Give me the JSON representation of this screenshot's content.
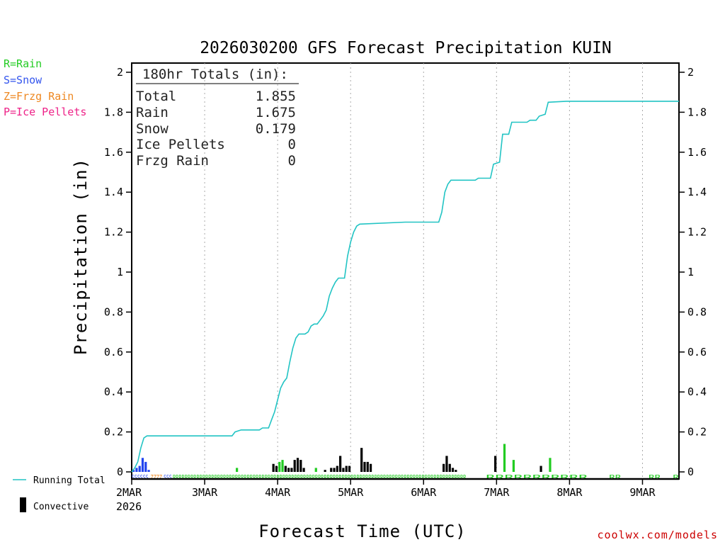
{
  "chart_data": {
    "type": "bar",
    "title": "2026030200 GFS Forecast Precipitation KUIN",
    "xlabel": "Forecast Time (UTC)",
    "ylabel": "Precipitation (in)",
    "ylim": [
      0,
      2
    ],
    "yticks": [
      "0",
      "0.2",
      "0.4",
      "0.6",
      "0.8",
      "1",
      "1.2",
      "1.4",
      "1.6",
      "1.8",
      "2"
    ],
    "xlim_hours": [
      0,
      180
    ],
    "day_ticks": [
      {
        "label": "2MAR",
        "hour": 0
      },
      {
        "label": "3MAR",
        "hour": 24
      },
      {
        "label": "4MAR",
        "hour": 48
      },
      {
        "label": "5MAR",
        "hour": 72
      },
      {
        "label": "6MAR",
        "hour": 96
      },
      {
        "label": "7MAR",
        "hour": 120
      },
      {
        "label": "8MAR",
        "hour": 144
      },
      {
        "label": "9MAR",
        "hour": 168
      }
    ],
    "year_label": "2026",
    "legend": [
      {
        "label": "R=Rain",
        "color": "#22cc22"
      },
      {
        "label": "S=Snow",
        "color": "#3355ee"
      },
      {
        "label": "Z=Frzg Rain",
        "color": "#ee8822"
      },
      {
        "label": "P=Ice Pellets",
        "color": "#ee2288"
      }
    ],
    "bottom_legend": {
      "running_total": "Running Total",
      "convective": "Convective"
    },
    "running_total_color": "#22c4c4",
    "totals": {
      "heading": "180hr Totals (in):",
      "rows": [
        {
          "label": "Total",
          "value": "1.855"
        },
        {
          "label": "Rain",
          "value": "1.675"
        },
        {
          "label": "Snow",
          "value": "0.179"
        },
        {
          "label": "Ice Pellets",
          "value": "0"
        },
        {
          "label": "Frzg Rain",
          "value": "0"
        }
      ]
    },
    "running_total": [
      [
        0,
        0
      ],
      [
        1,
        0.02
      ],
      [
        2,
        0.05
      ],
      [
        3,
        0.12
      ],
      [
        4,
        0.17
      ],
      [
        5,
        0.18
      ],
      [
        24,
        0.18
      ],
      [
        33,
        0.18
      ],
      [
        34,
        0.2
      ],
      [
        36,
        0.21
      ],
      [
        42,
        0.21
      ],
      [
        43,
        0.22
      ],
      [
        45,
        0.22
      ],
      [
        46,
        0.26
      ],
      [
        47,
        0.3
      ],
      [
        48,
        0.36
      ],
      [
        49,
        0.42
      ],
      [
        50,
        0.45
      ],
      [
        51,
        0.47
      ],
      [
        52,
        0.55
      ],
      [
        53,
        0.62
      ],
      [
        54,
        0.67
      ],
      [
        55,
        0.69
      ],
      [
        57,
        0.69
      ],
      [
        58,
        0.7
      ],
      [
        59,
        0.73
      ],
      [
        60,
        0.74
      ],
      [
        61,
        0.74
      ],
      [
        62,
        0.76
      ],
      [
        63,
        0.78
      ],
      [
        64,
        0.81
      ],
      [
        65,
        0.88
      ],
      [
        66,
        0.92
      ],
      [
        67,
        0.95
      ],
      [
        68,
        0.97
      ],
      [
        70,
        0.97
      ],
      [
        71,
        1.08
      ],
      [
        72,
        1.15
      ],
      [
        73,
        1.2
      ],
      [
        74,
        1.23
      ],
      [
        75,
        1.24
      ],
      [
        90,
        1.25
      ],
      [
        101,
        1.25
      ],
      [
        102,
        1.3
      ],
      [
        103,
        1.4
      ],
      [
        104,
        1.44
      ],
      [
        105,
        1.46
      ],
      [
        113,
        1.46
      ],
      [
        114,
        1.47
      ],
      [
        118,
        1.47
      ],
      [
        119,
        1.54
      ],
      [
        121,
        1.55
      ],
      [
        122,
        1.69
      ],
      [
        124,
        1.69
      ],
      [
        125,
        1.75
      ],
      [
        130,
        1.75
      ],
      [
        131,
        1.76
      ],
      [
        133,
        1.76
      ],
      [
        134,
        1.78
      ],
      [
        136,
        1.79
      ],
      [
        137,
        1.85
      ],
      [
        143,
        1.855
      ],
      [
        180,
        1.855
      ]
    ],
    "bars": [
      {
        "h": 0,
        "v": 0.01,
        "type": "snow"
      },
      {
        "h": 1,
        "v": 0.02,
        "type": "snow"
      },
      {
        "h": 2,
        "v": 0.03,
        "type": "snow"
      },
      {
        "h": 3,
        "v": 0.07,
        "type": "snow"
      },
      {
        "h": 4,
        "v": 0.05,
        "type": "snow"
      },
      {
        "h": 5,
        "v": 0.01,
        "type": "snow"
      },
      {
        "h": 34,
        "v": 0.02,
        "type": "rain"
      },
      {
        "h": 46,
        "v": 0.04,
        "type": "convective"
      },
      {
        "h": 47,
        "v": 0.03,
        "type": "convective"
      },
      {
        "h": 48,
        "v": 0.05,
        "type": "rain"
      },
      {
        "h": 49,
        "v": 0.06,
        "type": "rain"
      },
      {
        "h": 50,
        "v": 0.03,
        "type": "convective"
      },
      {
        "h": 51,
        "v": 0.02,
        "type": "convective"
      },
      {
        "h": 52,
        "v": 0.02,
        "type": "convective"
      },
      {
        "h": 53,
        "v": 0.06,
        "type": "convective"
      },
      {
        "h": 54,
        "v": 0.07,
        "type": "convective"
      },
      {
        "h": 55,
        "v": 0.06,
        "type": "convective"
      },
      {
        "h": 56,
        "v": 0.02,
        "type": "convective"
      },
      {
        "h": 60,
        "v": 0.02,
        "type": "rain"
      },
      {
        "h": 63,
        "v": 0.01,
        "type": "convective"
      },
      {
        "h": 65,
        "v": 0.02,
        "type": "convective"
      },
      {
        "h": 66,
        "v": 0.02,
        "type": "convective"
      },
      {
        "h": 67,
        "v": 0.03,
        "type": "convective"
      },
      {
        "h": 68,
        "v": 0.08,
        "type": "convective"
      },
      {
        "h": 69,
        "v": 0.02,
        "type": "convective"
      },
      {
        "h": 70,
        "v": 0.03,
        "type": "convective"
      },
      {
        "h": 71,
        "v": 0.03,
        "type": "convective"
      },
      {
        "h": 75,
        "v": 0.12,
        "type": "convective"
      },
      {
        "h": 76,
        "v": 0.05,
        "type": "convective"
      },
      {
        "h": 77,
        "v": 0.05,
        "type": "convective"
      },
      {
        "h": 78,
        "v": 0.04,
        "type": "convective"
      },
      {
        "h": 102,
        "v": 0.04,
        "type": "convective"
      },
      {
        "h": 103,
        "v": 0.08,
        "type": "convective"
      },
      {
        "h": 104,
        "v": 0.04,
        "type": "convective"
      },
      {
        "h": 105,
        "v": 0.02,
        "type": "convective"
      },
      {
        "h": 106,
        "v": 0.01,
        "type": "convective"
      },
      {
        "h": 119,
        "v": 0.08,
        "type": "convective"
      },
      {
        "h": 122,
        "v": 0.14,
        "type": "rain"
      },
      {
        "h": 125,
        "v": 0.06,
        "type": "rain"
      },
      {
        "h": 134,
        "v": 0.03,
        "type": "convective"
      },
      {
        "h": 137,
        "v": 0.07,
        "type": "rain"
      }
    ],
    "ptype_row": [
      {
        "text": "SSSSSS",
        "start": 0,
        "end": 5.5,
        "color": "#3355ee"
      },
      {
        "text": "ZZZZ",
        "start": 6.2,
        "end": 10,
        "color": "#ee8822"
      },
      {
        "text": "SSS",
        "start": 10.5,
        "end": 13.2,
        "color": "#3355ee"
      },
      {
        "text": "RRRRRRRRRRRRRRRRRRRRRRRRRRRRRRRRRRRRRRRRRRRRRRRRRRRRRRRRRRRRRRRRRRRRRRRRRRRRRRRRRRRRRRRRRRRRRRRRRRR",
        "start": 13.5,
        "end": 110,
        "color": "#22cc22"
      },
      {
        "text": "RRRRRRRRRRR",
        "start": 116.5,
        "end": 150,
        "color": "#22cc22"
      },
      {
        "text": "RR",
        "start": 157,
        "end": 161,
        "color": "#22cc22"
      },
      {
        "text": "RR",
        "start": 170,
        "end": 174,
        "color": "#22cc22"
      },
      {
        "text": "R",
        "start": 178,
        "end": 180,
        "color": "#22cc22"
      }
    ],
    "colors": {
      "rain": "#22cc22",
      "snow": "#2244ee",
      "convective": "#000000"
    },
    "credit": "coolwx.com/models"
  }
}
